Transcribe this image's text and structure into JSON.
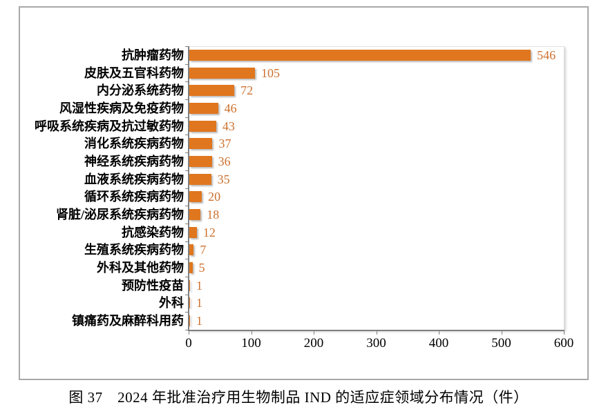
{
  "caption": "图 37　2024 年批准治疗用生物制品 IND 的适应症领域分布情况（件）",
  "chart_data": {
    "type": "bar",
    "orientation": "horizontal",
    "title": "图 37　2024 年批准治疗用生物制品 IND 的适应症领域分布情况（件）",
    "categories": [
      "抗肿瘤药物",
      "皮肤及五官科药物",
      "内分泌系统药物",
      "风湿性疾病及免疫药物",
      "呼吸系统疾病及抗过敏药物",
      "消化系统疾病药物",
      "神经系统疾病药物",
      "血液系统疾病药物",
      "循环系统疾病药物",
      "肾脏/泌尿系统疾病药物",
      "抗感染药物",
      "生殖系统疾病药物",
      "外科及其他药物",
      "预防性疫苗",
      "外科",
      "镇痛药及麻醉科用药"
    ],
    "values": [
      546,
      105,
      72,
      46,
      43,
      37,
      36,
      35,
      20,
      18,
      12,
      7,
      5,
      1,
      1,
      1
    ],
    "xlim": [
      0,
      600
    ],
    "x_ticks": [
      "0",
      "100",
      "200",
      "300",
      "400",
      "500",
      "600"
    ],
    "xlabel": "",
    "ylabel": "",
    "grid": false,
    "legend_position": "none",
    "bar_color": "#E0761E",
    "value_label_color": "#CD702D",
    "axis_color": "#7F7F7F"
  }
}
